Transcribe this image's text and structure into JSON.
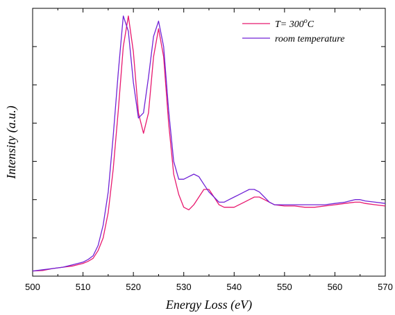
{
  "chart_data": {
    "type": "line",
    "xlabel": "Energy Loss (eV)",
    "ylabel": "Intensity (a.u.)",
    "xlim": [
      500,
      570
    ],
    "ylim": [
      0,
      1.05
    ],
    "x_ticks": [
      "500",
      "510",
      "520",
      "530",
      "540",
      "550",
      "560",
      "570"
    ],
    "y_tick_labels": "none",
    "grid": false,
    "legend_position": "top-right",
    "legend": [
      {
        "base": "T= 300",
        "sup": "o",
        "tail": "C"
      },
      {
        "base": "room temperature"
      }
    ],
    "series": [
      {
        "name": "T= 300°C",
        "color": "#e8186e",
        "x": [
          500,
          502,
          504,
          506,
          508,
          510,
          511,
          512,
          513,
          514,
          515,
          516,
          517,
          518,
          519,
          520,
          521,
          522,
          523,
          524,
          525,
          526,
          527,
          528,
          529,
          530,
          531,
          532,
          533,
          534,
          535,
          536,
          537,
          538,
          539,
          540,
          541,
          542,
          543,
          544,
          545,
          546,
          547,
          548,
          550,
          552,
          554,
          556,
          558,
          560,
          562,
          564,
          565,
          566,
          568,
          570
        ],
        "y": [
          0.02,
          0.022,
          0.03,
          0.035,
          0.04,
          0.05,
          0.058,
          0.07,
          0.1,
          0.15,
          0.25,
          0.42,
          0.65,
          0.9,
          1.02,
          0.88,
          0.64,
          0.56,
          0.64,
          0.86,
          0.97,
          0.86,
          0.6,
          0.4,
          0.32,
          0.27,
          0.26,
          0.28,
          0.31,
          0.34,
          0.34,
          0.31,
          0.28,
          0.27,
          0.27,
          0.27,
          0.28,
          0.29,
          0.3,
          0.31,
          0.31,
          0.3,
          0.29,
          0.28,
          0.275,
          0.275,
          0.27,
          0.27,
          0.275,
          0.28,
          0.285,
          0.29,
          0.29,
          0.285,
          0.28,
          0.275
        ]
      },
      {
        "name": "room temperature",
        "color": "#7022d6",
        "x": [
          500,
          502,
          504,
          506,
          508,
          510,
          511,
          512,
          513,
          514,
          515,
          516,
          517,
          518,
          519,
          520,
          521,
          522,
          523,
          524,
          525,
          526,
          527,
          528,
          529,
          530,
          531,
          532,
          533,
          534,
          535,
          536,
          537,
          538,
          539,
          540,
          541,
          542,
          543,
          544,
          545,
          546,
          547,
          548,
          550,
          552,
          554,
          556,
          558,
          560,
          562,
          564,
          565,
          566,
          568,
          570
        ],
        "y": [
          0.02,
          0.025,
          0.03,
          0.035,
          0.045,
          0.055,
          0.065,
          0.08,
          0.12,
          0.2,
          0.33,
          0.55,
          0.8,
          1.02,
          0.96,
          0.76,
          0.62,
          0.64,
          0.78,
          0.94,
          1.0,
          0.9,
          0.65,
          0.45,
          0.38,
          0.38,
          0.39,
          0.4,
          0.39,
          0.36,
          0.33,
          0.31,
          0.29,
          0.29,
          0.3,
          0.31,
          0.32,
          0.33,
          0.34,
          0.34,
          0.33,
          0.31,
          0.29,
          0.28,
          0.28,
          0.28,
          0.28,
          0.28,
          0.28,
          0.285,
          0.29,
          0.3,
          0.3,
          0.295,
          0.29,
          0.285
        ]
      }
    ]
  }
}
